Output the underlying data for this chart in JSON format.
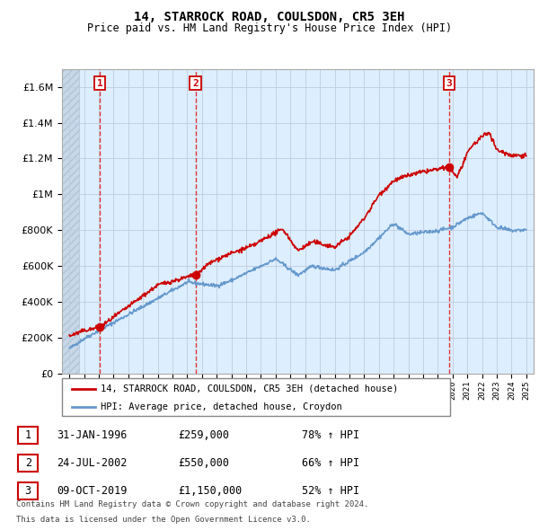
{
  "title": "14, STARROCK ROAD, COULSDON, CR5 3EH",
  "subtitle": "Price paid vs. HM Land Registry's House Price Index (HPI)",
  "legend_label_red": "14, STARROCK ROAD, COULSDON, CR5 3EH (detached house)",
  "legend_label_blue": "HPI: Average price, detached house, Croydon",
  "transactions": [
    {
      "num": 1,
      "date": "31-JAN-1996",
      "price": 259000,
      "price_str": "£259,000",
      "pct": "78%",
      "year_x": 1996.08
    },
    {
      "num": 2,
      "date": "24-JUL-2002",
      "price": 550000,
      "price_str": "£550,000",
      "pct": "66%",
      "year_x": 2002.56
    },
    {
      "num": 3,
      "date": "09-OCT-2019",
      "price": 1150000,
      "price_str": "£1,150,000",
      "pct": "52%",
      "year_x": 2019.77
    }
  ],
  "footer_line1": "Contains HM Land Registry data © Crown copyright and database right 2024.",
  "footer_line2": "This data is licensed under the Open Government Licence v3.0.",
  "red_color": "#cc0000",
  "blue_color": "#6699cc",
  "dashed_red": "#dd2222",
  "bg_color": "#ddeeff",
  "grid_color": "#c0cce0",
  "ylim": [
    0,
    1700000
  ],
  "xlim": [
    1993.5,
    2025.5
  ],
  "yticks": [
    0,
    200000,
    400000,
    600000,
    800000,
    1000000,
    1200000,
    1400000,
    1600000
  ]
}
